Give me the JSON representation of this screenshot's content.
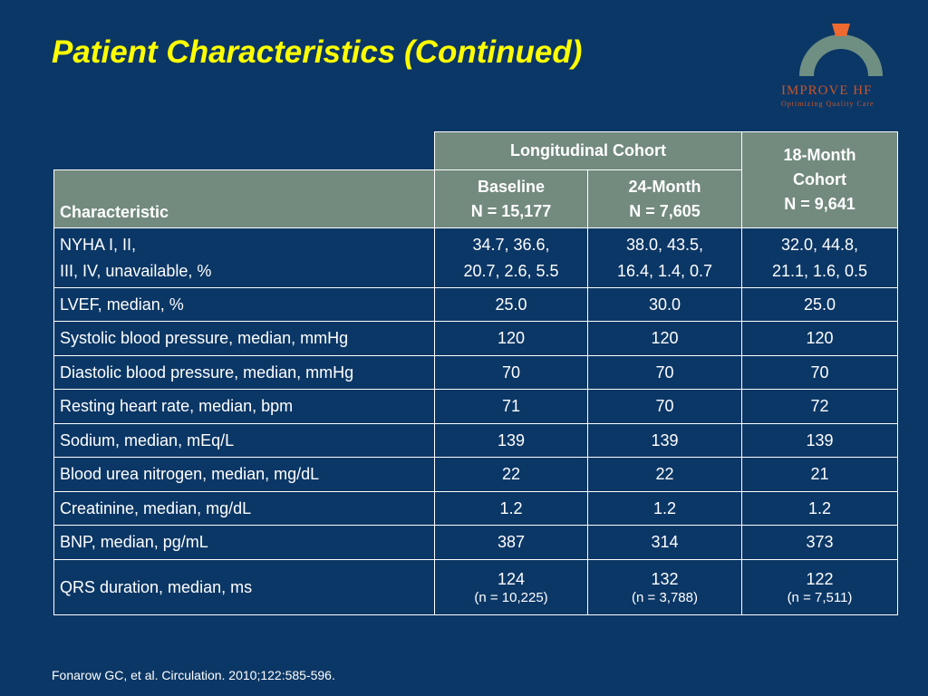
{
  "slide": {
    "title": "Patient Characteristics (Continued)",
    "footer": "Fonarow GC, et al. Circulation. 2010;122:585-596."
  },
  "logo": {
    "text_main": "IMPROVE",
    "text_hf": "HF",
    "tagline": "Optimizing Quality Care",
    "colors": {
      "arc": "#6e8f82",
      "accent": "#ee6a30",
      "text": "#c7552a"
    }
  },
  "table": {
    "group_header": "Longitudinal Cohort",
    "col_characteristic": "Characteristic",
    "col_baseline": [
      "Baseline",
      "N = 15,177"
    ],
    "col_24month": [
      "24-Month",
      "N = 7,605"
    ],
    "col_18month": [
      "18-Month",
      "Cohort",
      "N = 9,641"
    ],
    "rows": [
      {
        "label": [
          "NYHA  I, II,",
          "III, IV, unavailable, %"
        ],
        "baseline": [
          "34.7, 36.6,",
          "20.7, 2.6, 5.5"
        ],
        "m24": [
          "38.0, 43.5,",
          "16.4, 1.4, 0.7"
        ],
        "m18": [
          "32.0, 44.8,",
          "21.1, 1.6, 0.5"
        ]
      },
      {
        "label": "LVEF, median, %",
        "baseline": "25.0",
        "m24": "30.0",
        "m18": "25.0"
      },
      {
        "label": "Systolic blood pressure, median, mmHg",
        "baseline": "120",
        "m24": "120",
        "m18": "120"
      },
      {
        "label": "Diastolic blood pressure, median, mmHg",
        "baseline": "70",
        "m24": "70",
        "m18": "70"
      },
      {
        "label": "Resting heart rate, median, bpm",
        "baseline": "71",
        "m24": "70",
        "m18": "72"
      },
      {
        "label": "Sodium, median, mEq/L",
        "baseline": "139",
        "m24": "139",
        "m18": "139"
      },
      {
        "label": "Blood urea nitrogen, median, mg/dL",
        "baseline": "22",
        "m24": "22",
        "m18": "21"
      },
      {
        "label": "Creatinine, median, mg/dL",
        "baseline": "1.2",
        "m24": "1.2",
        "m18": "1.2"
      },
      {
        "label": "BNP, median, pg/mL",
        "baseline": "387",
        "m24": "314",
        "m18": "373"
      },
      {
        "label": "QRS duration, median, ms",
        "baseline": [
          "124",
          "(n = 10,225)"
        ],
        "m24": [
          "132",
          "(n = 3,788)"
        ],
        "m18": [
          "122",
          "(n = 7,511)"
        ]
      }
    ]
  }
}
